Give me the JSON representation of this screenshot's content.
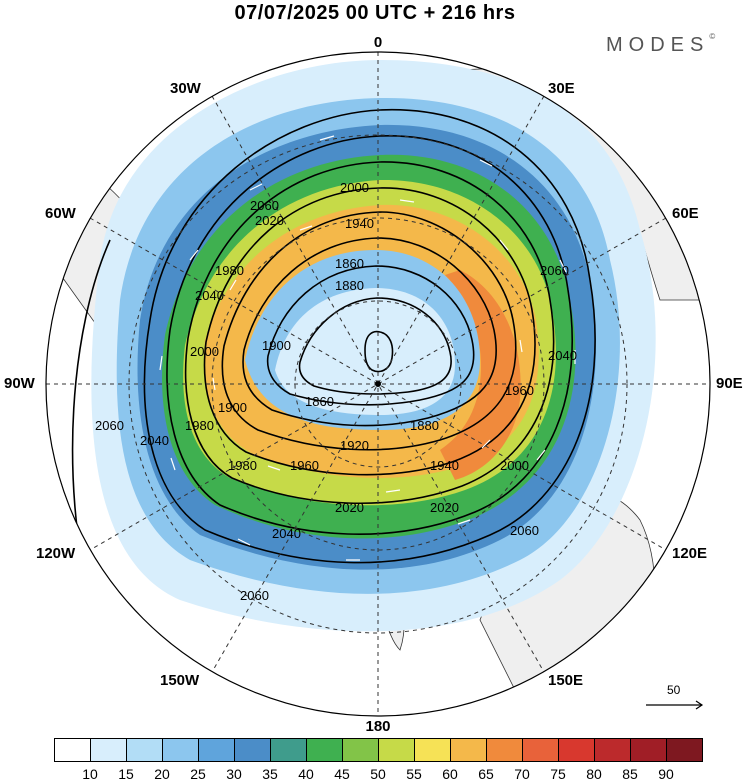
{
  "header": {
    "title": "07/07/2025  00 UTC  + 216 hrs",
    "brand": "MODES",
    "brand_mark": "©"
  },
  "map": {
    "projection": "north-polar-stereographic",
    "longitude_labels": {
      "n": "0",
      "ne30": "30E",
      "ne60": "60E",
      "e": "90E",
      "se120": "120E",
      "se150": "150E",
      "s": "180",
      "sw150": "150W",
      "sw120": "120W",
      "w": "90W",
      "nw60": "60W",
      "nw30": "30W"
    },
    "contour_labels": [
      "2060",
      "2060",
      "2060",
      "2060",
      "2060",
      "2040",
      "2040",
      "2040",
      "2040",
      "2020",
      "2020",
      "2020",
      "2000",
      "2000",
      "2000",
      "1980",
      "1980",
      "1980",
      "1960",
      "1960",
      "1940",
      "1940",
      "1920",
      "1900",
      "1900",
      "1880",
      "1880",
      "1860",
      "1860"
    ],
    "vector_reference": {
      "value": "50"
    }
  },
  "colorbar": {
    "ticks": [
      "10",
      "15",
      "20",
      "25",
      "30",
      "35",
      "40",
      "45",
      "50",
      "55",
      "60",
      "65",
      "70",
      "75",
      "80",
      "85",
      "90"
    ],
    "colors": [
      "#ffffff",
      "#d8eefc",
      "#b2ddf6",
      "#8cc6ee",
      "#5fa4dc",
      "#4b8dc8",
      "#3f9c8c",
      "#3fb050",
      "#82c448",
      "#c6da48",
      "#f6e256",
      "#f4b84a",
      "#f08a3c",
      "#e8623a",
      "#d8382e",
      "#bc2a2c",
      "#a01e26",
      "#7e1820"
    ]
  }
}
